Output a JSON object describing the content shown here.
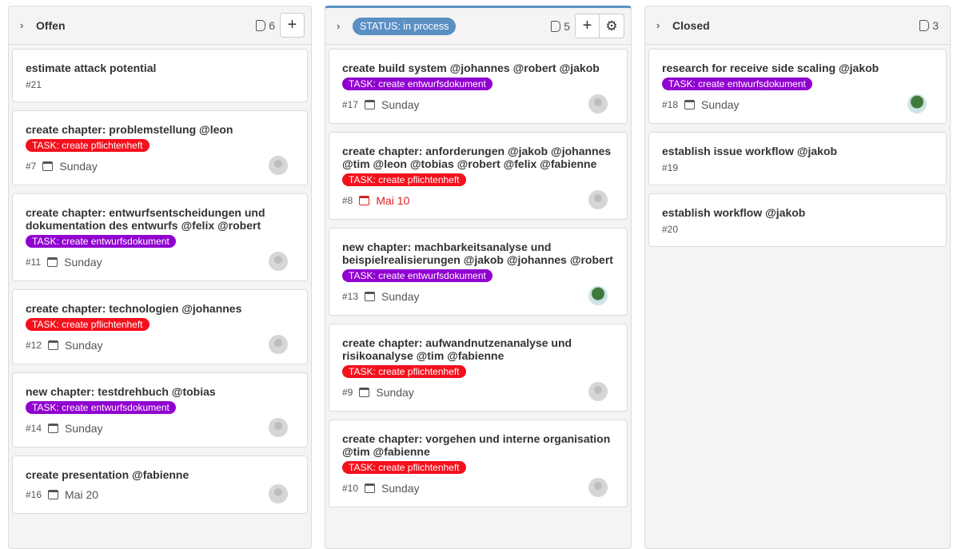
{
  "colors": {
    "purple": "#9000d0",
    "red": "#f4101c",
    "status": "#5a8fc4"
  },
  "columns": [
    {
      "title": "Offen",
      "count": "6",
      "cards": [
        {
          "title": "estimate attack potential",
          "id": "#21"
        },
        {
          "title": "create chapter: problemstellung @leon",
          "label": "TASK: create pflichtenheft",
          "label_color": "red",
          "id": "#7",
          "due": "Sunday",
          "avatar": "default"
        },
        {
          "title": "create chapter: entwurfsentscheidungen und dokumentation des entwurfs @felix @robert",
          "label": "TASK: create entwurfsdokument",
          "label_color": "purple",
          "id": "#11",
          "due": "Sunday",
          "avatar": "default"
        },
        {
          "title": "create chapter: technologien @johannes",
          "label": "TASK: create pflichtenheft",
          "label_color": "red",
          "id": "#12",
          "due": "Sunday",
          "avatar": "default"
        },
        {
          "title": "new chapter: testdrehbuch @tobias",
          "label": "TASK: create entwurfsdokument",
          "label_color": "purple",
          "id": "#14",
          "due": "Sunday",
          "avatar": "default"
        },
        {
          "title": "create presentation @fabienne",
          "id": "#16",
          "due": "Mai 20",
          "avatar": "default"
        }
      ]
    },
    {
      "title": "STATUS: in process",
      "count": "5",
      "cards": [
        {
          "title": "create build system @johannes @robert @jakob",
          "label": "TASK: create entwurfsdokument",
          "label_color": "purple",
          "id": "#17",
          "due": "Sunday",
          "avatar": "default"
        },
        {
          "title": "create chapter: anforderungen @jakob @johannes @tim @leon @tobias @robert @felix @fabienne",
          "label": "TASK: create pflichtenheft",
          "label_color": "red",
          "id": "#8",
          "due": "Mai 10",
          "overdue": true,
          "avatar": "default"
        },
        {
          "title": "new chapter: machbarkeitsanalyse und beispielrealisierungen @jakob @johannes @robert",
          "label": "TASK: create entwurfsdokument",
          "label_color": "purple",
          "id": "#13",
          "due": "Sunday",
          "avatar": "tree"
        },
        {
          "title": "create chapter: aufwandnutzenanalyse und risikoanalyse @tim @fabienne",
          "label": "TASK: create pflichtenheft",
          "label_color": "red",
          "id": "#9",
          "due": "Sunday",
          "avatar": "default"
        },
        {
          "title": "create chapter: vorgehen und interne organisation @tim @fabienne",
          "label": "TASK: create pflichtenheft",
          "label_color": "red",
          "id": "#10",
          "due": "Sunday",
          "avatar": "default"
        }
      ]
    },
    {
      "title": "Closed",
      "count": "3",
      "cards": [
        {
          "title": "research for receive side scaling @jakob",
          "label": "TASK: create entwurfsdokument",
          "label_color": "purple",
          "id": "#18",
          "due": "Sunday",
          "avatar": "tree"
        },
        {
          "title": "establish issue workflow @jakob",
          "id": "#19"
        },
        {
          "title": "establish workflow @jakob",
          "id": "#20"
        }
      ]
    }
  ]
}
